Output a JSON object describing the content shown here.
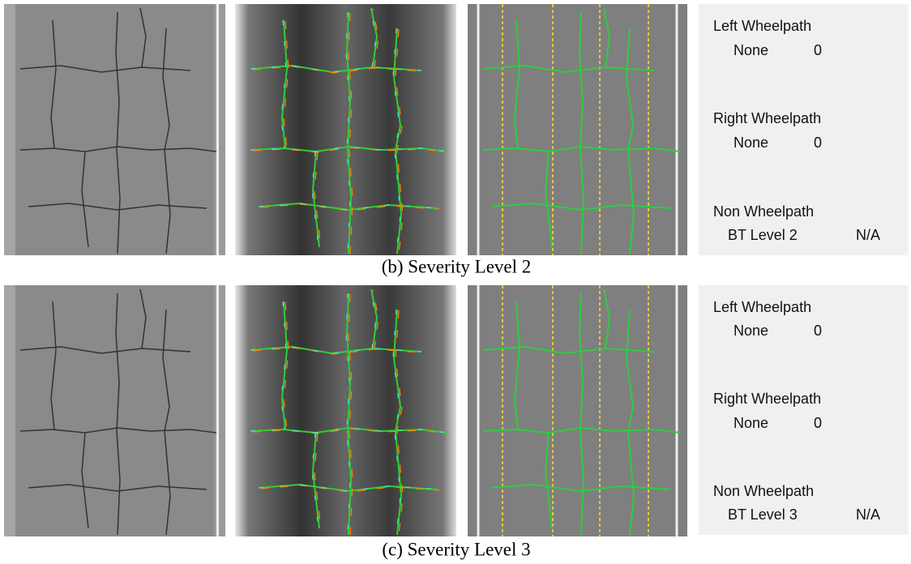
{
  "figures": [
    {
      "caption": "(b) Severity Level 2",
      "panel": [
        {
          "heading": "Left Wheelpath",
          "label": "None",
          "value": "0"
        },
        {
          "heading": "Right Wheelpath",
          "label": "None",
          "value": "0"
        },
        {
          "heading": "Non Wheelpath",
          "label": "BT Level 2",
          "value": "N/A"
        }
      ]
    },
    {
      "caption": "(c) Severity Level 3",
      "panel": [
        {
          "heading": "Left Wheelpath",
          "label": "None",
          "value": "0"
        },
        {
          "heading": "Right Wheelpath",
          "label": "None",
          "value": "0"
        },
        {
          "heading": "Non Wheelpath",
          "label": "BT Level 3",
          "value": "N/A"
        }
      ]
    }
  ]
}
